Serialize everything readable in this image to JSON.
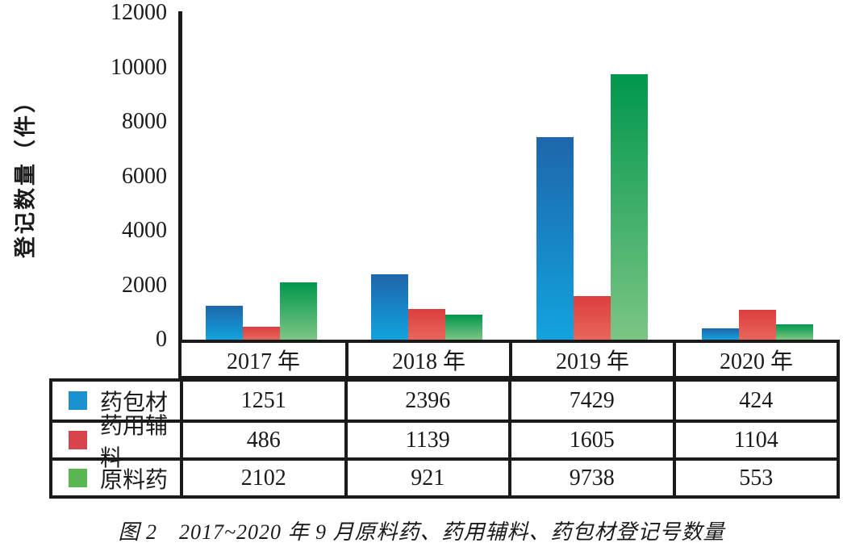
{
  "chart_data": {
    "type": "bar",
    "title": "",
    "ylabel": "登记数量（件）",
    "xlabel": "",
    "categories": [
      "2017 年",
      "2018 年",
      "2019 年",
      "2020 年"
    ],
    "series": [
      {
        "name": "药包材",
        "key": "packaging",
        "values": [
          1251,
          2396,
          7429,
          424
        ],
        "bar_color_top": "#1e66ab",
        "bar_color_bottom": "#12a3de",
        "legend_color": "#1b91cf"
      },
      {
        "name": "药用辅料",
        "key": "excipients",
        "values": [
          486,
          1139,
          1605,
          1104
        ],
        "bar_color_top": "#dc3e3e",
        "bar_color_bottom": "#e8665c",
        "legend_color": "#d8444e"
      },
      {
        "name": "原料药",
        "key": "api",
        "values": [
          2102,
          921,
          9738,
          553
        ],
        "bar_color_top": "#00974d",
        "bar_color_bottom": "#7cc584",
        "legend_color": "#59b650"
      }
    ],
    "ylim": [
      0,
      12000
    ],
    "yticks": [
      0,
      2000,
      4000,
      6000,
      8000,
      10000,
      12000
    ],
    "grid": false,
    "legend_position": "table-left",
    "axis_color": "#1a1a1a"
  },
  "caption": "图 2　2017~2020 年 9 月原料药、药用辅料、药包材登记号数量"
}
